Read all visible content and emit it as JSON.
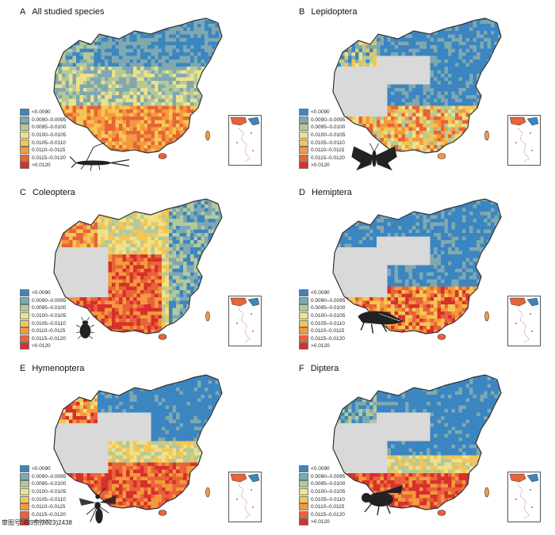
{
  "legend": {
    "bins": [
      {
        "label": "<0.0090",
        "color": "#3b86c1"
      },
      {
        "label": "0.0090–0.0095",
        "color": "#7fa8b0"
      },
      {
        "label": "0.0095–0.0100",
        "color": "#b4c99a"
      },
      {
        "label": "0.0100–0.0105",
        "color": "#ede18a"
      },
      {
        "label": "0.0105–0.0110",
        "color": "#f5c653"
      },
      {
        "label": "0.0110–0.0115",
        "color": "#f39a3c"
      },
      {
        "label": "0.0115–0.0120",
        "color": "#e8633a"
      },
      {
        "label": ">0.0120",
        "color": "#d7302d"
      }
    ],
    "no_data_color": "#d9d9d9"
  },
  "panels": [
    {
      "letter": "A",
      "title": "All studied species",
      "silhouette": "earwig-icon"
    },
    {
      "letter": "B",
      "title": "Lepidoptera",
      "silhouette": "moth-icon"
    },
    {
      "letter": "C",
      "title": "Coleoptera",
      "silhouette": "beetle-icon"
    },
    {
      "letter": "D",
      "title": "Hemiptera",
      "silhouette": "leafhopper-icon"
    },
    {
      "letter": "E",
      "title": "Hymenoptera",
      "silhouette": "wasp-icon"
    },
    {
      "letter": "F",
      "title": "Diptera",
      "silhouette": "fly-icon"
    }
  ],
  "footer": {
    "text": "审图号: GS京(2023)2438"
  }
}
